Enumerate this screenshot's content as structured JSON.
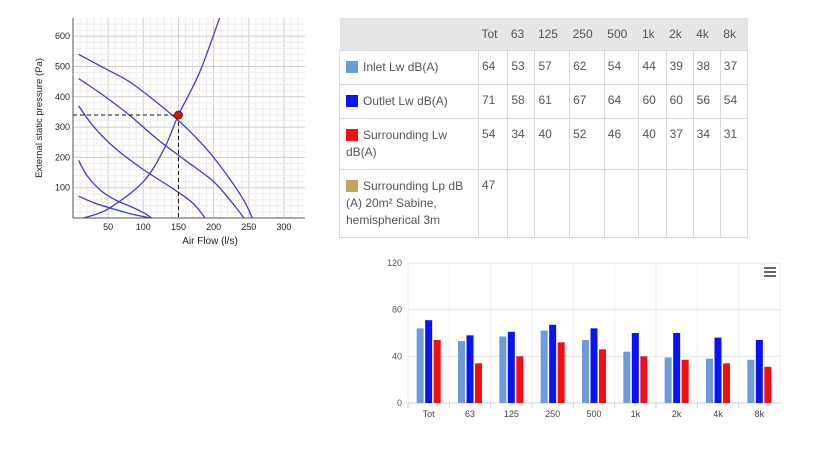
{
  "colors": {
    "inlet": "#6f9bd8",
    "outlet": "#0a14f0",
    "surrounding_lw": "#f20f0f",
    "surrounding_lp": "#c7a25e",
    "fan_curve": "#3b3fc4",
    "operating_point": "#cc1a1a"
  },
  "table": {
    "headers": [
      "Tot",
      "63",
      "125",
      "250",
      "500",
      "1k",
      "2k",
      "4k",
      "8k"
    ],
    "rows": [
      {
        "label": "Inlet Lw dB(A)",
        "color": "#6f9bd8",
        "values": [
          "64",
          "53",
          "57",
          "62",
          "54",
          "44",
          "39",
          "38",
          "37"
        ]
      },
      {
        "label": "Outlet Lw dB(A)",
        "color": "#0a14f0",
        "values": [
          "71",
          "58",
          "61",
          "67",
          "64",
          "60",
          "60",
          "56",
          "54"
        ]
      },
      {
        "label": "Surrounding Lw dB(A)",
        "color": "#f20f0f",
        "values": [
          "54",
          "34",
          "40",
          "52",
          "46",
          "40",
          "37",
          "34",
          "31"
        ]
      },
      {
        "label": "Surrounding Lp dB (A) 20m² Sabine, hemispherical 3m",
        "color": "#c7a25e",
        "values": [
          "47",
          "",
          "",
          "",
          "",
          "",
          "",
          "",
          ""
        ]
      }
    ]
  },
  "chart_data": [
    {
      "type": "line",
      "xlabel": "Air Flow (l/s)",
      "ylabel": "External static pressure (Pa)",
      "xlim": [
        0,
        330
      ],
      "ylim": [
        0,
        660
      ],
      "x_ticks": [
        50,
        100,
        150,
        200,
        250,
        300
      ],
      "y_ticks": [
        100,
        200,
        300,
        400,
        500,
        600
      ],
      "grid": true,
      "fan_curves": [
        {
          "x": [
            8,
            40,
            80,
            120,
            160,
            200,
            240,
            255
          ],
          "y": [
            540,
            500,
            450,
            380,
            300,
            200,
            70,
            0
          ]
        },
        {
          "x": [
            8,
            40,
            80,
            120,
            160,
            200,
            230,
            243
          ],
          "y": [
            460,
            410,
            340,
            260,
            190,
            120,
            40,
            0
          ]
        },
        {
          "x": [
            8,
            30,
            60,
            100,
            140,
            170,
            188
          ],
          "y": [
            370,
            300,
            230,
            160,
            100,
            50,
            0
          ]
        },
        {
          "x": [
            8,
            20,
            40,
            60,
            80,
            100,
            112
          ],
          "y": [
            190,
            140,
            90,
            60,
            40,
            18,
            0
          ]
        },
        {
          "x": [
            8,
            30,
            60,
            80,
            100,
            110
          ],
          "y": [
            72,
            50,
            28,
            15,
            5,
            0
          ]
        }
      ],
      "system_curve": {
        "x": [
          15,
          50,
          100,
          130,
          150,
          180,
          210
        ],
        "y": [
          0,
          30,
          120,
          230,
          340,
          480,
          670
        ]
      },
      "operating_point": {
        "x": 150,
        "y": 340
      }
    },
    {
      "type": "bar",
      "categories": [
        "Tot",
        "63",
        "125",
        "250",
        "500",
        "1k",
        "2k",
        "4k",
        "8k"
      ],
      "series": [
        {
          "name": "Inlet Lw dB(A)",
          "values": [
            64,
            53,
            57,
            62,
            54,
            44,
            39,
            38,
            37
          ]
        },
        {
          "name": "Outlet Lw dB(A)",
          "values": [
            71,
            58,
            61,
            67,
            64,
            60,
            60,
            56,
            54
          ]
        },
        {
          "name": "Surrounding Lw dB(A)",
          "values": [
            54,
            34,
            40,
            52,
            46,
            40,
            37,
            34,
            31
          ]
        }
      ],
      "ylim": [
        0,
        120
      ],
      "y_ticks": [
        0,
        40,
        80,
        120
      ],
      "menu_icon": "hamburger-menu-icon"
    }
  ]
}
